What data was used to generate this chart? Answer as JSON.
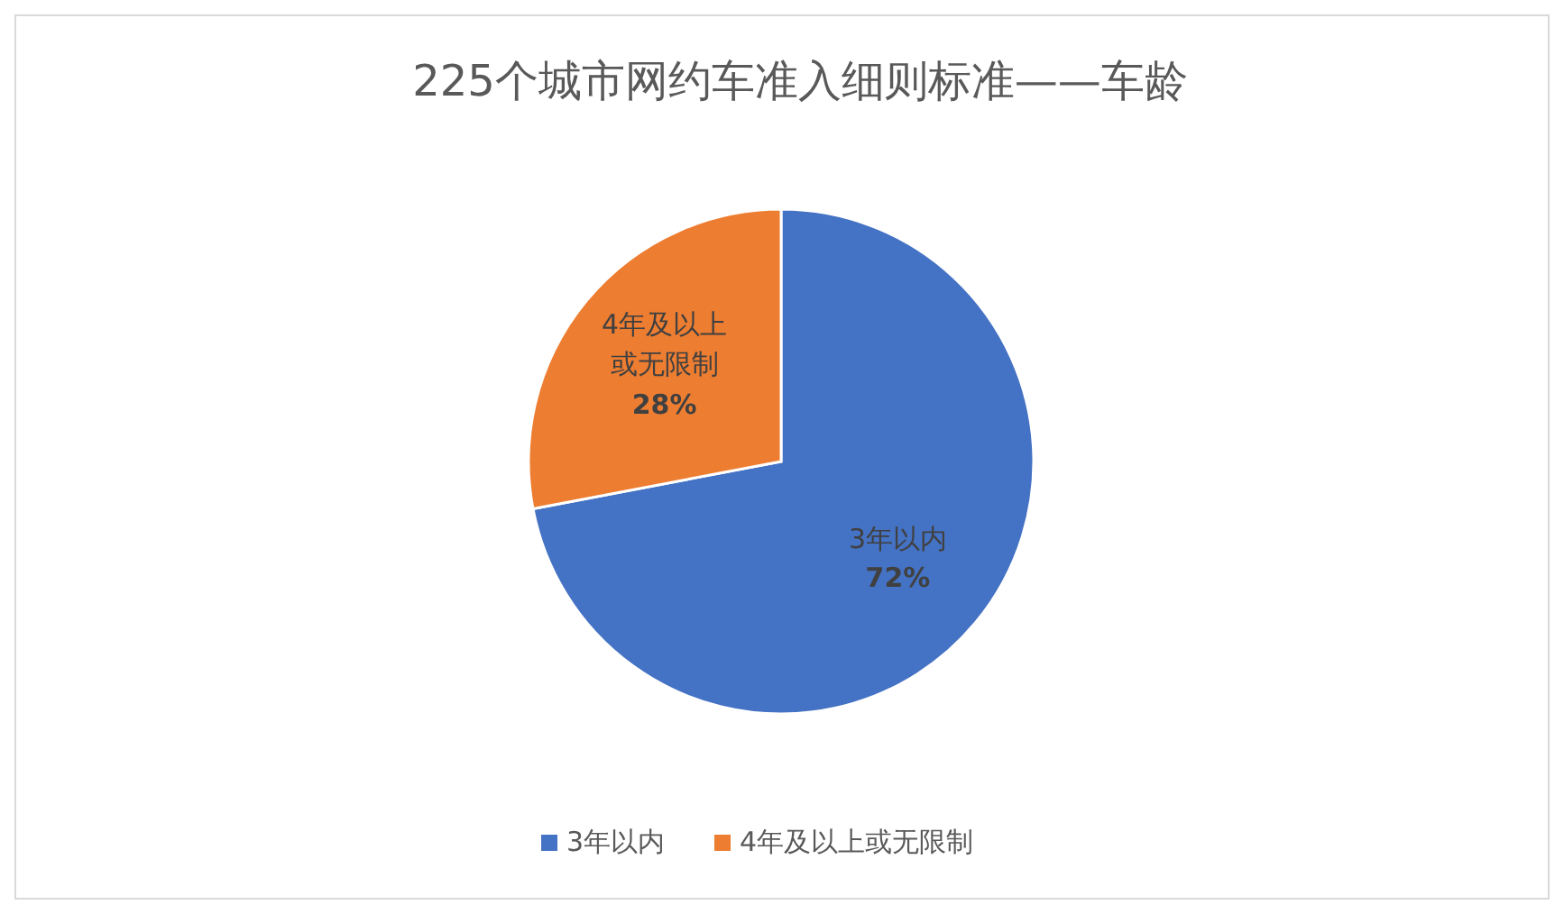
{
  "chart_data": {
    "type": "pie",
    "title": "225个城市网约车准入细则标准——车龄",
    "categories": [
      "3年以内",
      "4年及以上或无限制"
    ],
    "values": [
      72,
      28
    ],
    "colors": [
      "#4472c4",
      "#ed7d31"
    ],
    "value_labels": [
      "72%",
      "28%"
    ],
    "legend": "bottom"
  }
}
